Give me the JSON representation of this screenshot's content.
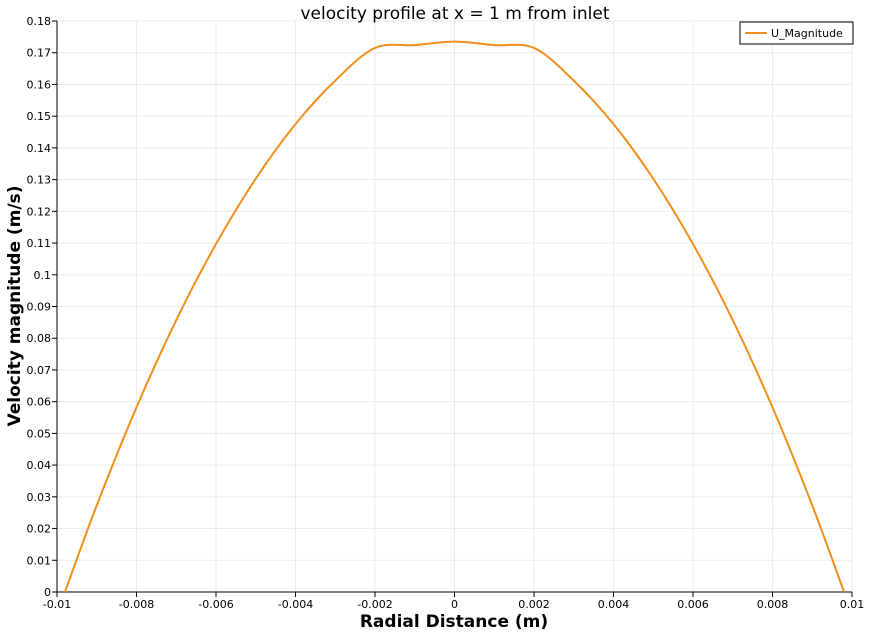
{
  "chart_data": {
    "type": "line",
    "title": "velocity profile at x = 1 m from inlet",
    "xlabel": "Radial Distance (m)",
    "ylabel": "Velocity magnitude (m/s)",
    "xlim": [
      -0.01,
      0.01
    ],
    "ylim": [
      0,
      0.18
    ],
    "xticks": [
      -0.01,
      -0.008,
      -0.006,
      -0.004,
      -0.002,
      0,
      0.002,
      0.004,
      0.006,
      0.008,
      0.01
    ],
    "xtick_labels": [
      "-0.01",
      "-0.008",
      "-0.006",
      "-0.004",
      "-0.002",
      "0",
      "0.002",
      "0.004",
      "0.006",
      "0.008",
      "0.01"
    ],
    "yticks": [
      0,
      0.01,
      0.02,
      0.03,
      0.04,
      0.05,
      0.06,
      0.07,
      0.08,
      0.09,
      0.1,
      0.11,
      0.12,
      0.13,
      0.14,
      0.15,
      0.16,
      0.17,
      0.18
    ],
    "ytick_labels": [
      "0",
      "0.01",
      "0.02",
      "0.03",
      "0.04",
      "0.05",
      "0.06",
      "0.07",
      "0.08",
      "0.09",
      "0.1",
      "0.11",
      "0.12",
      "0.13",
      "0.14",
      "0.15",
      "0.16",
      "0.17",
      "0.18"
    ],
    "grid": true,
    "legend_position": "top-right",
    "series": [
      {
        "name": "U_Magnitude",
        "color": "#f28e1c",
        "x": [
          -0.0098,
          -0.009,
          -0.008,
          -0.007,
          -0.006,
          -0.005,
          -0.004,
          -0.003,
          -0.002,
          -0.001,
          0,
          0.001,
          0.002,
          0.003,
          0.004,
          0.005,
          0.006,
          0.007,
          0.008,
          0.009,
          0.0098
        ],
        "y": [
          0,
          0.0273,
          0.0582,
          0.0857,
          0.1097,
          0.1303,
          0.1475,
          0.1612,
          0.1715,
          0.1724,
          0.1735,
          0.1724,
          0.1715,
          0.1612,
          0.1475,
          0.1303,
          0.1097,
          0.0857,
          0.0582,
          0.0273,
          0
        ]
      }
    ]
  }
}
